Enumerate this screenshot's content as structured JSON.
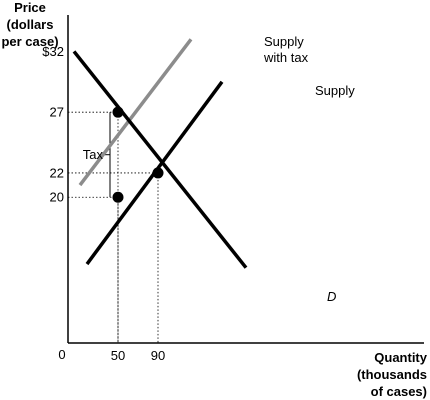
{
  "chart_data": {
    "type": "line",
    "ylabel_lines": [
      "Price",
      "(dollars",
      "per case)"
    ],
    "xlabel_lines": [
      "Quantity",
      "(thousands",
      "of cases)"
    ],
    "origin_label": "0",
    "xlim": [
      0,
      220
    ],
    "ylim": [
      8,
      35
    ],
    "y_ticks": [
      {
        "value": 32,
        "label": "$32"
      },
      {
        "value": 27,
        "label": "27"
      },
      {
        "value": 22,
        "label": "22"
      },
      {
        "value": 20,
        "label": "20"
      }
    ],
    "x_ticks": [
      {
        "value": 50,
        "label": "50"
      },
      {
        "value": 90,
        "label": "90"
      }
    ],
    "series": [
      {
        "name": "Supply with tax",
        "name_lines": [
          "Supply",
          "with tax"
        ],
        "color": "#8c8c8c",
        "points": [
          [
            12,
            21
          ],
          [
            123,
            33
          ]
        ]
      },
      {
        "name": "Supply",
        "name_lines": [
          "Supply"
        ],
        "color": "#000000",
        "points": [
          [
            19,
            14.5
          ],
          [
            154,
            29.5
          ]
        ]
      },
      {
        "name": "D",
        "name_lines": [
          "D"
        ],
        "color": "#000000",
        "points": [
          [
            6,
            32
          ],
          [
            178,
            14.2
          ]
        ]
      }
    ],
    "points": [
      {
        "x": 50,
        "y": 27
      },
      {
        "x": 90,
        "y": 22
      },
      {
        "x": 50,
        "y": 20
      }
    ],
    "guides": [
      {
        "x": 50,
        "y": 27
      },
      {
        "x": 90,
        "y": 22
      },
      {
        "x": 50,
        "y": 20
      }
    ],
    "annotations": [
      {
        "text": "Tax",
        "x": 50,
        "y_from": 20,
        "y_to": 27
      }
    ]
  }
}
